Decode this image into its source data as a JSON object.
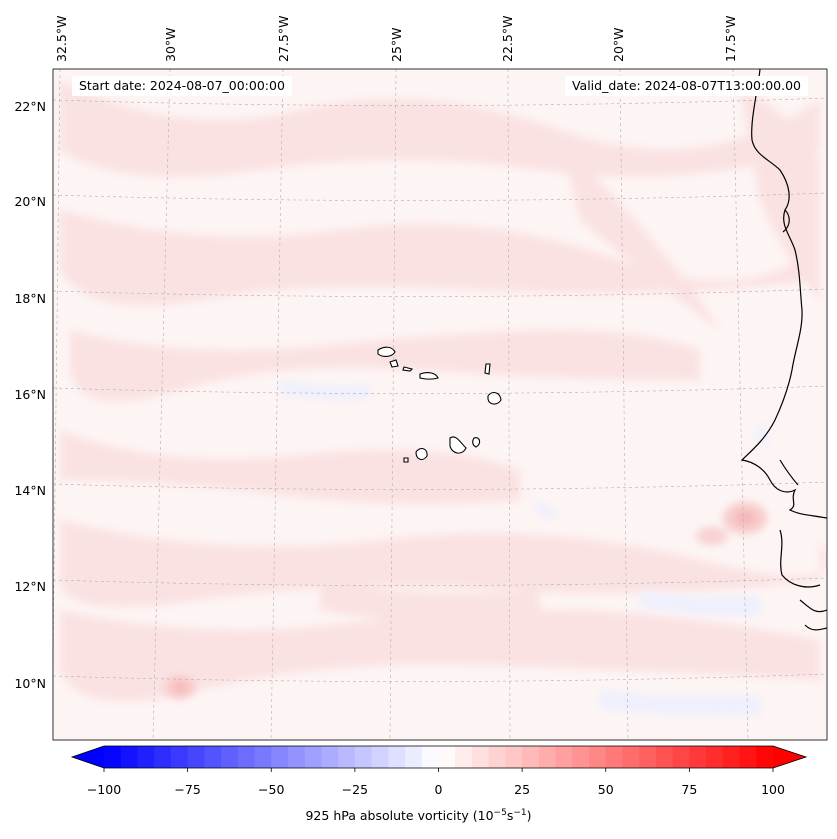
{
  "map": {
    "start_date_text": "Start date: 2024-08-07_00:00:00",
    "valid_date_text": "Valid_date: 2024-08-07T13:00:00.00",
    "lon_labels": [
      "32.5°W",
      "30°W",
      "27.5°W",
      "25°W",
      "22.5°W",
      "20°W",
      "17.5°W"
    ],
    "lat_labels": [
      "22°N",
      "20°N",
      "18°N",
      "16°N",
      "14°N",
      "12°N",
      "10°N"
    ],
    "projection_grid": "dashed gray, slightly curved",
    "field_colors": {
      "background": "#fdf3f3",
      "light_red": "#fbe3e3",
      "medium_red": "#f8d0d0",
      "light_blue": "#eef0fd"
    }
  },
  "colorbar": {
    "label_prefix": "925 hPa absolute vorticity (10",
    "label_exp1": "−5",
    "label_mid": "s",
    "label_exp2": "−1",
    "label_suffix": ")",
    "ticks": [
      "−100",
      "−75",
      "−50",
      "−25",
      "0",
      "25",
      "50",
      "75",
      "100"
    ],
    "min": -100,
    "max": 100,
    "low_color": "#0000ff",
    "high_color": "#ff0000"
  }
}
